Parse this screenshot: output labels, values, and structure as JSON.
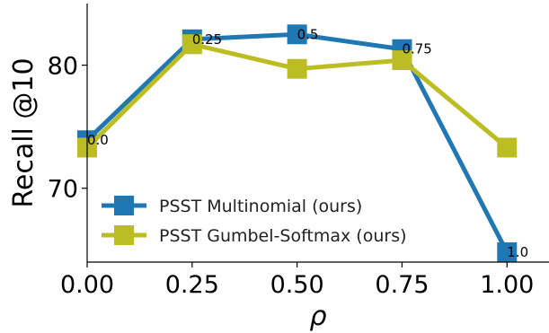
{
  "chart_data": {
    "type": "line",
    "xlabel": "ρ",
    "ylabel": "Recall @10",
    "xlim": [
      0.0,
      1.1
    ],
    "ylim": [
      64,
      85
    ],
    "x": [
      0.0,
      0.25,
      0.5,
      0.75,
      1.0
    ],
    "x_tick_labels": [
      "0.00",
      "0.25",
      "0.50",
      "0.75",
      "1.00"
    ],
    "y_ticks": [
      70,
      80
    ],
    "y_tick_labels": [
      "70",
      "80"
    ],
    "series": [
      {
        "name": "PSST Multinomial (ours)",
        "color": "#1f77b4",
        "values": [
          73.9,
          82.1,
          82.5,
          81.3,
          64.8
        ]
      },
      {
        "name": "PSST Gumbel-Softmax (ours)",
        "color": "#bcbd22",
        "values": [
          73.3,
          81.7,
          79.7,
          80.4,
          73.3
        ]
      }
    ],
    "annotations": [
      {
        "text": "0.0",
        "x": 0.0,
        "y": 73.9
      },
      {
        "text": "0.25",
        "x": 0.25,
        "y": 82.1
      },
      {
        "text": "0.5",
        "x": 0.5,
        "y": 82.5
      },
      {
        "text": "0.75",
        "x": 0.75,
        "y": 81.3
      },
      {
        "text": "1.0",
        "x": 1.0,
        "y": 64.8
      }
    ],
    "grid": false,
    "legend_position": "lower-left"
  }
}
